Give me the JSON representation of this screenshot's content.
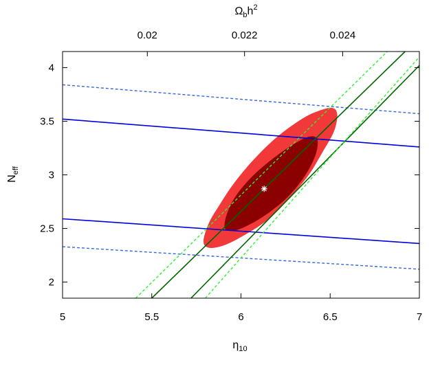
{
  "chart_data": {
    "type": "contour",
    "xlabel": {
      "base": "η",
      "sub": "10"
    },
    "ylabel": {
      "base": "N",
      "sub": "eff"
    },
    "x2label": {
      "base": "Ω",
      "sub": "b",
      "rest": "h",
      "sup": "2"
    },
    "xlim": [
      5,
      7
    ],
    "ylim": [
      1.85,
      4.15
    ],
    "xticks": [
      5,
      5.5,
      6,
      6.5,
      7
    ],
    "yticks": [
      2,
      2.5,
      3,
      3.5,
      4
    ],
    "xtick_labels": [
      "5",
      "5.5",
      "6",
      "6.5",
      "7"
    ],
    "ytick_labels": [
      "2",
      "2.5",
      "3",
      "3.5",
      "4"
    ],
    "x2ticks": [
      {
        "label": "0.02",
        "eta": 5.475
      },
      {
        "label": "0.022",
        "eta": 6.02
      },
      {
        "label": "0.024",
        "eta": 6.57
      }
    ],
    "grid": false,
    "legend": "none",
    "best_fit": {
      "x": 6.13,
      "y": 2.87,
      "marker": "*",
      "color": "#ffffff"
    },
    "filled_contours": [
      {
        "level": "95%",
        "color": "#f2393a",
        "points": [
          [
            5.79,
            2.38
          ],
          [
            5.82,
            2.55
          ],
          [
            5.88,
            2.72
          ],
          [
            5.96,
            2.92
          ],
          [
            6.07,
            3.14
          ],
          [
            6.2,
            3.35
          ],
          [
            6.35,
            3.53
          ],
          [
            6.46,
            3.61
          ],
          [
            6.52,
            3.62
          ],
          [
            6.54,
            3.55
          ],
          [
            6.52,
            3.4
          ],
          [
            6.46,
            3.22
          ],
          [
            6.38,
            3.0
          ],
          [
            6.27,
            2.78
          ],
          [
            6.15,
            2.58
          ],
          [
            6.0,
            2.42
          ],
          [
            5.9,
            2.34
          ],
          [
            5.82,
            2.32
          ]
        ]
      },
      {
        "level": "68%",
        "color": "#8b0000",
        "points": [
          [
            5.91,
            2.5
          ],
          [
            5.92,
            2.63
          ],
          [
            5.97,
            2.8
          ],
          [
            6.06,
            2.98
          ],
          [
            6.17,
            3.14
          ],
          [
            6.28,
            3.27
          ],
          [
            6.37,
            3.35
          ],
          [
            6.42,
            3.35
          ],
          [
            6.43,
            3.28
          ],
          [
            6.41,
            3.15
          ],
          [
            6.35,
            2.97
          ],
          [
            6.26,
            2.79
          ],
          [
            6.15,
            2.64
          ],
          [
            6.04,
            2.53
          ],
          [
            5.96,
            2.48
          ]
        ]
      }
    ],
    "series": [
      {
        "style": "solid",
        "color": "#0000dd",
        "points": [
          [
            5.0,
            3.52
          ],
          [
            7.0,
            3.26
          ]
        ]
      },
      {
        "style": "solid",
        "color": "#0000dd",
        "points": [
          [
            5.0,
            2.59
          ],
          [
            7.0,
            2.36
          ]
        ]
      },
      {
        "style": "dashed",
        "color": "#3366dd",
        "points": [
          [
            5.0,
            3.84
          ],
          [
            7.0,
            3.57
          ]
        ]
      },
      {
        "style": "dashed",
        "color": "#3366dd",
        "points": [
          [
            5.0,
            2.33
          ],
          [
            7.0,
            2.12
          ]
        ]
      },
      {
        "style": "solid",
        "color": "#006400",
        "points": [
          [
            5.5,
            1.85
          ],
          [
            6.92,
            4.15
          ]
        ]
      },
      {
        "style": "solid",
        "color": "#006400",
        "points": [
          [
            5.72,
            1.85
          ],
          [
            7.0,
            4.02
          ]
        ]
      },
      {
        "style": "dashed",
        "color": "#33ee33",
        "points": [
          [
            5.41,
            1.85
          ],
          [
            6.82,
            4.15
          ]
        ]
      },
      {
        "style": "dashed",
        "color": "#33ee33",
        "points": [
          [
            5.8,
            1.85
          ],
          [
            7.0,
            4.1
          ]
        ]
      }
    ]
  }
}
